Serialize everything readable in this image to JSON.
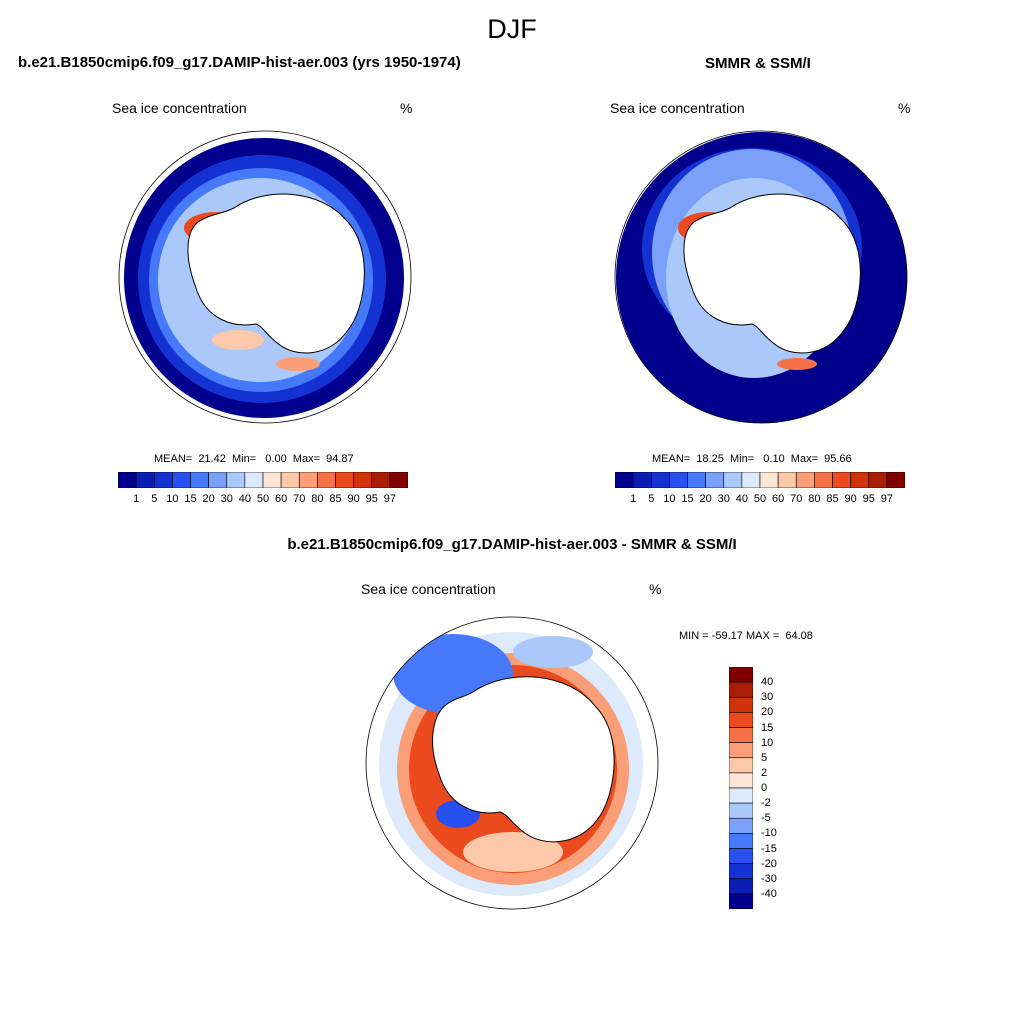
{
  "figure_title": "DJF",
  "panels": [
    {
      "title": "b.e21.B1850cmip6.f09_g17.DAMIP-hist-aer.003 (yrs 1950-1974)",
      "variable": "Sea ice concentration",
      "units": "%",
      "stats": "MEAN=  21.42  Min=   0.00  Max=  94.87"
    },
    {
      "title": "SMMR & SSM/I",
      "variable": "Sea ice concentration",
      "units": "%",
      "stats": "MEAN=  18.25  Min=   0.10  Max=  95.66"
    },
    {
      "title": "b.e21.B1850cmip6.f09_g17.DAMIP-hist-aer.003 - SMMR & SSM/I",
      "variable": "Sea ice concentration",
      "units": "%",
      "stats": "MIN = -59.17 MAX =  64.08"
    }
  ],
  "colorbar_abs": {
    "levels": [
      "1",
      "5",
      "10",
      "15",
      "20",
      "30",
      "40",
      "50",
      "60",
      "70",
      "80",
      "85",
      "90",
      "95",
      "97"
    ],
    "colors": [
      "#00008c",
      "#0a1eb4",
      "#1432d2",
      "#2850f0",
      "#4678fa",
      "#7aa0fa",
      "#aac8fa",
      "#dceafc",
      "#fde6d6",
      "#fcc8aa",
      "#fa9e78",
      "#f57248",
      "#eb4a1e",
      "#d2320a",
      "#aa1e05",
      "#800000"
    ]
  },
  "colorbar_diff": {
    "levels": [
      "40",
      "30",
      "20",
      "15",
      "10",
      "5",
      "2",
      "0",
      "-2",
      "-5",
      "-10",
      "-15",
      "-20",
      "-30",
      "-40"
    ],
    "colors": [
      "#800000",
      "#aa1e05",
      "#d2320a",
      "#eb4a1e",
      "#f57248",
      "#fa9e78",
      "#fcc8aa",
      "#fde6d6",
      "#dceafc",
      "#aac8fa",
      "#7aa0fa",
      "#4678fa",
      "#2850f0",
      "#1432d2",
      "#0a1eb4",
      "#00008c"
    ]
  }
}
